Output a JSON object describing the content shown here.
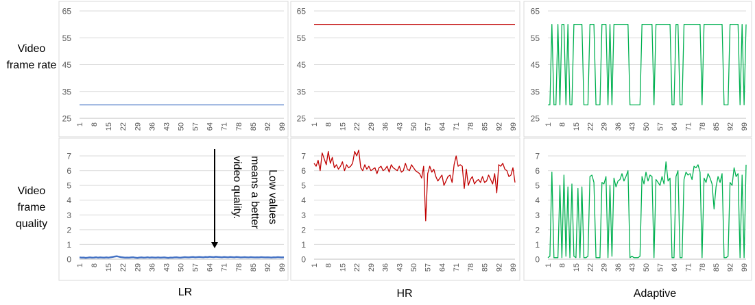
{
  "row_labels": [
    "Video frame rate",
    "Video frame quality"
  ],
  "col_labels": [
    "LR",
    "HR",
    "Adaptive"
  ],
  "annotation": "Low values means a better video quality.",
  "colors": {
    "LR": "#4472c4",
    "HR": "#c00000",
    "Adaptive": "#00b050",
    "grid": "#d9d9d9",
    "axis": "#595959"
  },
  "x_ticks": [
    "1",
    "8",
    "15",
    "22",
    "29",
    "36",
    "43",
    "50",
    "57",
    "64",
    "71",
    "78",
    "85",
    "92",
    "99"
  ],
  "chart_data": [
    {
      "type": "line",
      "panel": "rate-LR",
      "ylim": [
        25,
        65
      ],
      "yticks": [
        25,
        35,
        45,
        55,
        65
      ],
      "x_range": [
        1,
        100
      ],
      "series": [
        {
          "values": [
            30,
            30
          ]
        }
      ]
    },
    {
      "type": "line",
      "panel": "rate-HR",
      "ylim": [
        25,
        65
      ],
      "yticks": [
        25,
        35,
        45,
        55,
        65
      ],
      "x_range": [
        1,
        100
      ],
      "series": [
        {
          "values": [
            60,
            60
          ]
        }
      ]
    },
    {
      "type": "line",
      "panel": "rate-Adaptive",
      "ylim": [
        25,
        65
      ],
      "yticks": [
        25,
        35,
        45,
        55,
        65
      ],
      "x_range": [
        1,
        100
      ],
      "series": [
        {
          "values": [
            30,
            30,
            60,
            30,
            30,
            60,
            30,
            60,
            60,
            30,
            60,
            30,
            30,
            60,
            60,
            60,
            60,
            60,
            30,
            30,
            30,
            60,
            60,
            60,
            30,
            30,
            30,
            60,
            60,
            60,
            30,
            60,
            30,
            60,
            60,
            60,
            60,
            60,
            60,
            60,
            60,
            30,
            30,
            30,
            30,
            30,
            30,
            60,
            60,
            60,
            60,
            60,
            60,
            30,
            60,
            60,
            60,
            60,
            60,
            60,
            60,
            60,
            30,
            30,
            60,
            60,
            30,
            30,
            60,
            60,
            60,
            60,
            60,
            60,
            60,
            60,
            60,
            30,
            60,
            60,
            60,
            60,
            60,
            60,
            60,
            60,
            60,
            60,
            30,
            30,
            30,
            60,
            60,
            60,
            60,
            60,
            30,
            60,
            30,
            60
          ]
        }
      ]
    },
    {
      "type": "line",
      "panel": "quality-LR",
      "ylim": [
        0,
        7
      ],
      "yticks": [
        0,
        1,
        2,
        3,
        4,
        5,
        6,
        7
      ],
      "x_range": [
        1,
        100
      ],
      "series": [
        {
          "values": [
            0.12,
            0.1,
            0.11,
            0.09,
            0.1,
            0.12,
            0.1,
            0.11,
            0.13,
            0.1,
            0.12,
            0.11,
            0.1,
            0.12,
            0.1,
            0.13,
            0.15,
            0.18,
            0.2,
            0.17,
            0.14,
            0.12,
            0.1,
            0.11,
            0.1,
            0.12,
            0.13,
            0.1,
            0.09,
            0.11,
            0.12,
            0.1,
            0.11,
            0.13,
            0.1,
            0.12,
            0.11,
            0.1,
            0.12,
            0.1,
            0.11,
            0.12,
            0.1,
            0.09,
            0.11,
            0.1,
            0.12,
            0.13,
            0.11,
            0.1,
            0.12,
            0.14,
            0.13,
            0.12,
            0.14,
            0.15,
            0.13,
            0.14,
            0.15,
            0.14,
            0.13,
            0.15,
            0.14,
            0.16,
            0.15,
            0.14,
            0.16,
            0.15,
            0.14,
            0.13,
            0.15,
            0.14,
            0.13,
            0.15,
            0.14,
            0.13,
            0.15,
            0.14,
            0.12,
            0.13,
            0.14,
            0.13,
            0.12,
            0.14,
            0.13,
            0.12,
            0.13,
            0.12,
            0.14,
            0.13,
            0.12,
            0.13,
            0.12,
            0.11,
            0.13,
            0.12,
            0.14,
            0.13,
            0.12,
            0.13
          ]
        }
      ]
    },
    {
      "type": "line",
      "panel": "quality-HR",
      "ylim": [
        0,
        7
      ],
      "yticks": [
        0,
        1,
        2,
        3,
        4,
        5,
        6,
        7
      ],
      "x_range": [
        1,
        100
      ],
      "series": [
        {
          "values": [
            6.5,
            6.3,
            6.7,
            6.0,
            7.2,
            6.8,
            6.4,
            7.3,
            6.5,
            6.9,
            6.2,
            6.4,
            6.1,
            6.3,
            6.6,
            6.0,
            6.4,
            6.2,
            6.3,
            6.5,
            7.3,
            7.0,
            7.4,
            6.2,
            6.0,
            6.4,
            6.1,
            6.3,
            6.0,
            6.1,
            6.2,
            5.8,
            6.2,
            6.3,
            6.0,
            6.1,
            6.3,
            5.9,
            6.4,
            6.2,
            6.1,
            6.0,
            6.3,
            5.9,
            6.0,
            6.5,
            6.1,
            6.0,
            6.4,
            6.2,
            6.0,
            5.9,
            5.8,
            5.5,
            6.3,
            2.6,
            5.8,
            6.3,
            5.9,
            6.1,
            5.6,
            5.3,
            5.5,
            5.7,
            5.0,
            5.3,
            5.6,
            5.7,
            5.2,
            6.4,
            7.0,
            6.3,
            6.4,
            6.3,
            4.8,
            6.1,
            5.0,
            5.4,
            5.6,
            5.1,
            5.3,
            5.4,
            5.2,
            5.6,
            5.2,
            5.3,
            5.7,
            5.4,
            5.1,
            5.8,
            4.5,
            6.4,
            6.3,
            6.5,
            6.1,
            6.0,
            5.6,
            5.7,
            6.2,
            5.2
          ]
        }
      ]
    },
    {
      "type": "line",
      "panel": "quality-Adaptive",
      "ylim": [
        0,
        7
      ],
      "yticks": [
        0,
        1,
        2,
        3,
        4,
        5,
        6,
        7
      ],
      "x_range": [
        1,
        100
      ],
      "series": [
        {
          "values": [
            0.1,
            0.2,
            5.9,
            0.1,
            0.1,
            0.1,
            5.0,
            0.1,
            5.7,
            0.2,
            4.9,
            0.1,
            5.1,
            0.2,
            0.1,
            4.8,
            0.1,
            4.9,
            0.1,
            0.1,
            0.2,
            5.6,
            5.7,
            5.2,
            0.1,
            0.1,
            0.1,
            5.2,
            5.1,
            5.6,
            0.1,
            5.0,
            0.2,
            5.5,
            4.9,
            5.3,
            5.4,
            5.8,
            5.3,
            5.6,
            6.0,
            0.1,
            0.2,
            0.1,
            0.1,
            0.1,
            0.2,
            5.6,
            5.1,
            5.9,
            5.3,
            5.7,
            5.6,
            0.1,
            5.4,
            5.2,
            5.0,
            5.6,
            5.1,
            6.6,
            5.3,
            5.5,
            0.1,
            0.1,
            5.6,
            6.0,
            0.1,
            0.1,
            5.4,
            5.9,
            5.7,
            5.8,
            5.4,
            6.3,
            6.2,
            6.4,
            5.9,
            0.1,
            5.5,
            5.2,
            5.8,
            5.5,
            5.1,
            3.4,
            4.9,
            5.6,
            5.2,
            5.8,
            0.1,
            0.1,
            0.2,
            5.2,
            5.0,
            6.2,
            5.6,
            5.8,
            0.1,
            5.7,
            0.1,
            6.4
          ]
        }
      ]
    }
  ]
}
